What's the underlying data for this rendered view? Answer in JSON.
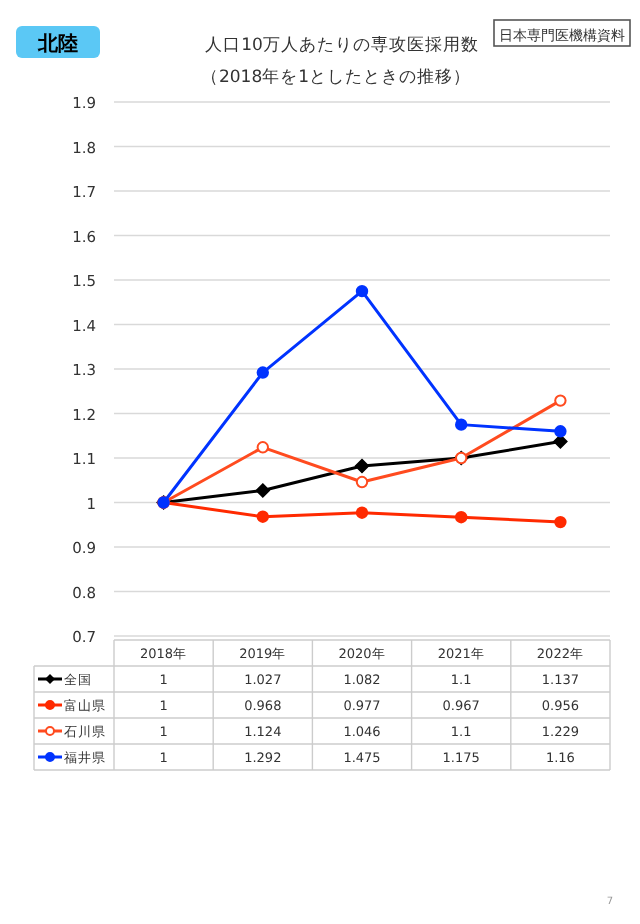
{
  "chart_data": {
    "type": "line",
    "title": "人口10万人あたりの専攻医採用数",
    "subtitle": "（2018年を1としたときの推移）",
    "annotations": [
      "北陸",
      "日本専門医機構資料",
      "7"
    ],
    "categories": [
      "2018年",
      "2019年",
      "2020年",
      "2021年",
      "2022年"
    ],
    "ylim": [
      0.7,
      1.9
    ],
    "yticks": [
      0.7,
      0.8,
      0.9,
      1,
      1.1,
      1.2,
      1.3,
      1.4,
      1.5,
      1.6,
      1.7,
      1.8,
      1.9
    ],
    "grid": "y",
    "legend": "bottom",
    "data_labels": true,
    "line_style": "solid",
    "series": [
      {
        "name": "全国",
        "color": "#000000",
        "marker": "diamond",
        "values": [
          1,
          1.027,
          1.082,
          1.1,
          1.137
        ]
      },
      {
        "name": "富山県",
        "color": "#ff2a00",
        "marker": "circle",
        "values": [
          1,
          0.968,
          0.977,
          0.967,
          0.956
        ]
      },
      {
        "name": "石川県",
        "color": "#ff4b1f",
        "marker": "circle",
        "values": [
          1,
          1.124,
          1.046,
          1.1,
          1.229
        ]
      },
      {
        "name": "福井県",
        "color": "#0033ff",
        "marker": "circle",
        "values": [
          1,
          1.292,
          1.475,
          1.175,
          1.16
        ]
      }
    ]
  }
}
